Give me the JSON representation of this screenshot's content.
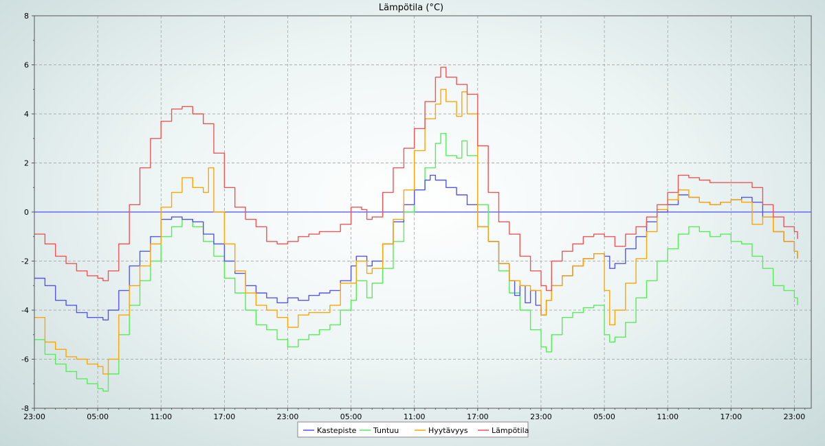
{
  "chart_data": {
    "type": "line",
    "title": "Lämpötila (°C)",
    "xlabel": "",
    "ylabel": "",
    "ylim": [
      -8,
      8
    ],
    "yticks": [
      -8,
      -6,
      -4,
      -2,
      0,
      2,
      4,
      6,
      8
    ],
    "xlim": [
      0,
      72
    ],
    "x_unit": "hours since first tick (23:00)",
    "xtick_labels": [
      "23:00",
      "05:00",
      "11:00",
      "17:00",
      "23:00",
      "05:00",
      "11:00",
      "17:00",
      "23:00",
      "05:00",
      "11:00",
      "17:00",
      "23:00"
    ],
    "xtick_hours": [
      0,
      6,
      12,
      18,
      24,
      30,
      36,
      42,
      48,
      54,
      60,
      66,
      72
    ],
    "grid": true,
    "zero_line_color": "#4c4cff",
    "legend_position": "bottom-center",
    "series": [
      {
        "name": "Kastepiste",
        "color": "#5555ee",
        "points": [
          [
            0,
            -2.7
          ],
          [
            1,
            -3.0
          ],
          [
            2,
            -3.6
          ],
          [
            3,
            -3.8
          ],
          [
            4,
            -4.1
          ],
          [
            5,
            -4.3
          ],
          [
            6,
            -4.3
          ],
          [
            6.5,
            -4.4
          ],
          [
            7,
            -4.0
          ],
          [
            8,
            -3.2
          ],
          [
            9,
            -2.2
          ],
          [
            10,
            -1.6
          ],
          [
            11,
            -1.0
          ],
          [
            12,
            -0.3
          ],
          [
            13,
            -0.2
          ],
          [
            14,
            -0.3
          ],
          [
            15,
            -0.4
          ],
          [
            16,
            -0.9
          ],
          [
            17,
            -1.3
          ],
          [
            18,
            -2.0
          ],
          [
            19,
            -2.5
          ],
          [
            20,
            -3.0
          ],
          [
            21,
            -3.3
          ],
          [
            22,
            -3.5
          ],
          [
            23,
            -3.7
          ],
          [
            24,
            -3.5
          ],
          [
            25,
            -3.6
          ],
          [
            26,
            -3.4
          ],
          [
            27,
            -3.3
          ],
          [
            28,
            -3.2
          ],
          [
            29,
            -2.8
          ],
          [
            30,
            -2.2
          ],
          [
            30.5,
            -1.8
          ],
          [
            31,
            -1.8
          ],
          [
            31.5,
            -2.2
          ],
          [
            32,
            -2.0
          ],
          [
            33,
            -1.3
          ],
          [
            34,
            -0.4
          ],
          [
            35,
            0.3
          ],
          [
            36,
            0.9
          ],
          [
            37,
            1.3
          ],
          [
            37.5,
            1.5
          ],
          [
            38,
            1.3
          ],
          [
            39,
            1.0
          ],
          [
            40,
            0.7
          ],
          [
            41,
            0.3
          ],
          [
            42,
            -0.6
          ],
          [
            43,
            -1.2
          ],
          [
            44,
            -2.1
          ],
          [
            45,
            -2.8
          ],
          [
            45.5,
            -3.4
          ],
          [
            46,
            -3.0
          ],
          [
            46.5,
            -3.7
          ],
          [
            47,
            -3.2
          ],
          [
            47.5,
            -3.8
          ],
          [
            48,
            -4.2
          ],
          [
            48.5,
            -3.6
          ],
          [
            49,
            -3.0
          ],
          [
            50,
            -2.6
          ],
          [
            51,
            -2.2
          ],
          [
            52,
            -1.9
          ],
          [
            53,
            -1.7
          ],
          [
            54,
            -1.8
          ],
          [
            54.5,
            -2.3
          ],
          [
            55,
            -2.1
          ],
          [
            56,
            -1.5
          ],
          [
            57,
            -1.0
          ],
          [
            58,
            -0.4
          ],
          [
            59,
            0.0
          ],
          [
            60,
            0.3
          ],
          [
            61,
            0.7
          ],
          [
            62,
            0.6
          ],
          [
            63,
            0.4
          ],
          [
            64,
            0.3
          ],
          [
            65,
            0.4
          ],
          [
            66,
            0.5
          ],
          [
            67,
            0.6
          ],
          [
            68,
            0.4
          ],
          [
            69,
            -0.2
          ],
          [
            70,
            -0.8
          ],
          [
            71,
            -1.2
          ],
          [
            72,
            -1.6
          ],
          [
            72.3,
            -1.9
          ]
        ]
      },
      {
        "name": "Tuntuu",
        "color": "#55ee55",
        "points": [
          [
            0,
            -5.2
          ],
          [
            1,
            -5.8
          ],
          [
            2,
            -6.2
          ],
          [
            3,
            -6.5
          ],
          [
            4,
            -6.8
          ],
          [
            5,
            -7.0
          ],
          [
            6,
            -7.2
          ],
          [
            6.5,
            -7.3
          ],
          [
            7,
            -6.6
          ],
          [
            8,
            -5.0
          ],
          [
            9,
            -3.8
          ],
          [
            10,
            -2.8
          ],
          [
            11,
            -2.0
          ],
          [
            12,
            -1.0
          ],
          [
            13,
            -0.6
          ],
          [
            14,
            -0.3
          ],
          [
            15,
            -0.6
          ],
          [
            16,
            -1.2
          ],
          [
            17,
            -1.8
          ],
          [
            18,
            -2.7
          ],
          [
            19,
            -3.3
          ],
          [
            20,
            -4.0
          ],
          [
            21,
            -4.6
          ],
          [
            22,
            -4.8
          ],
          [
            23,
            -5.2
          ],
          [
            24,
            -5.5
          ],
          [
            25,
            -5.2
          ],
          [
            26,
            -5.0
          ],
          [
            27,
            -4.8
          ],
          [
            28,
            -4.6
          ],
          [
            29,
            -4.0
          ],
          [
            30,
            -3.6
          ],
          [
            30.5,
            -2.8
          ],
          [
            31,
            -2.8
          ],
          [
            31.5,
            -3.5
          ],
          [
            32,
            -2.9
          ],
          [
            33,
            -2.3
          ],
          [
            34,
            -1.2
          ],
          [
            35,
            0.0
          ],
          [
            36,
            0.9
          ],
          [
            37,
            1.8
          ],
          [
            38,
            2.8
          ],
          [
            38.5,
            3.2
          ],
          [
            39,
            2.3
          ],
          [
            40,
            2.2
          ],
          [
            40.5,
            2.9
          ],
          [
            41,
            2.3
          ],
          [
            42,
            0.3
          ],
          [
            43,
            -1.2
          ],
          [
            44,
            -2.4
          ],
          [
            45,
            -3.3
          ],
          [
            46,
            -4.0
          ],
          [
            47,
            -4.8
          ],
          [
            48,
            -5.5
          ],
          [
            48.5,
            -5.7
          ],
          [
            49,
            -5.0
          ],
          [
            50,
            -4.3
          ],
          [
            51,
            -4.1
          ],
          [
            52,
            -3.9
          ],
          [
            53,
            -3.8
          ],
          [
            54,
            -5.0
          ],
          [
            54.5,
            -5.3
          ],
          [
            55,
            -5.1
          ],
          [
            56,
            -4.5
          ],
          [
            57,
            -3.5
          ],
          [
            58,
            -2.8
          ],
          [
            59,
            -2.0
          ],
          [
            60,
            -1.5
          ],
          [
            61,
            -0.9
          ],
          [
            62,
            -0.6
          ],
          [
            63,
            -0.8
          ],
          [
            64,
            -1.0
          ],
          [
            65,
            -0.9
          ],
          [
            66,
            -1.2
          ],
          [
            67,
            -1.3
          ],
          [
            68,
            -1.8
          ],
          [
            69,
            -2.3
          ],
          [
            70,
            -3.0
          ],
          [
            71,
            -3.2
          ],
          [
            72,
            -3.5
          ],
          [
            72.3,
            -3.8
          ]
        ]
      },
      {
        "name": "Hyytävyys",
        "color": "#ffa500",
        "points": [
          [
            0,
            -4.3
          ],
          [
            1,
            -5.3
          ],
          [
            2,
            -5.6
          ],
          [
            3,
            -5.9
          ],
          [
            4,
            -6.0
          ],
          [
            5,
            -6.2
          ],
          [
            6,
            -6.3
          ],
          [
            6.5,
            -6.6
          ],
          [
            7,
            -6.0
          ],
          [
            8,
            -4.2
          ],
          [
            9,
            -3.0
          ],
          [
            10,
            -2.2
          ],
          [
            11,
            -1.3
          ],
          [
            12,
            0.2
          ],
          [
            13,
            0.8
          ],
          [
            14,
            1.4
          ],
          [
            15,
            1.0
          ],
          [
            16,
            0.8
          ],
          [
            16.5,
            1.8
          ],
          [
            17,
            0.0
          ],
          [
            18,
            -1.3
          ],
          [
            19,
            -2.4
          ],
          [
            20,
            -3.3
          ],
          [
            21,
            -3.8
          ],
          [
            22,
            -4.0
          ],
          [
            23,
            -4.3
          ],
          [
            24,
            -4.7
          ],
          [
            25,
            -4.2
          ],
          [
            26,
            -4.1
          ],
          [
            27,
            -4.1
          ],
          [
            28,
            -3.8
          ],
          [
            29,
            -2.9
          ],
          [
            30,
            -2.9
          ],
          [
            30.5,
            -2.0
          ],
          [
            31,
            -2.0
          ],
          [
            31.5,
            -2.5
          ],
          [
            32,
            -2.3
          ],
          [
            33,
            -1.3
          ],
          [
            34,
            -0.3
          ],
          [
            35,
            0.9
          ],
          [
            36,
            2.5
          ],
          [
            37,
            3.8
          ],
          [
            38,
            4.4
          ],
          [
            38.5,
            5.0
          ],
          [
            39,
            4.5
          ],
          [
            40,
            3.9
          ],
          [
            40.5,
            4.9
          ],
          [
            41,
            4.0
          ],
          [
            42,
            -0.6
          ],
          [
            43,
            -1.2
          ],
          [
            44,
            -2.1
          ],
          [
            45,
            -2.8
          ],
          [
            46,
            -3.0
          ],
          [
            47,
            -3.2
          ],
          [
            48,
            -4.2
          ],
          [
            48.5,
            -3.6
          ],
          [
            49,
            -3.0
          ],
          [
            50,
            -2.6
          ],
          [
            51,
            -2.2
          ],
          [
            52,
            -1.9
          ],
          [
            53,
            -1.7
          ],
          [
            54,
            -3.2
          ],
          [
            54.5,
            -4.6
          ],
          [
            55,
            -4.0
          ],
          [
            56,
            -2.9
          ],
          [
            57,
            -1.9
          ],
          [
            58,
            -0.8
          ],
          [
            59,
            0.1
          ],
          [
            60,
            0.5
          ],
          [
            61,
            0.9
          ],
          [
            62,
            0.6
          ],
          [
            63,
            0.4
          ],
          [
            64,
            0.3
          ],
          [
            65,
            0.4
          ],
          [
            66,
            0.5
          ],
          [
            67,
            0.4
          ],
          [
            68,
            -0.5
          ],
          [
            69,
            -0.2
          ],
          [
            70,
            -0.8
          ],
          [
            71,
            -1.2
          ],
          [
            72,
            -1.6
          ],
          [
            72.3,
            -1.9
          ]
        ]
      },
      {
        "name": "Lämpötila",
        "color": "#ee5555",
        "points": [
          [
            0,
            -0.9
          ],
          [
            1,
            -1.3
          ],
          [
            2,
            -1.8
          ],
          [
            3,
            -2.1
          ],
          [
            4,
            -2.4
          ],
          [
            5,
            -2.6
          ],
          [
            6,
            -2.7
          ],
          [
            6.5,
            -2.8
          ],
          [
            7,
            -2.4
          ],
          [
            8,
            -1.3
          ],
          [
            9,
            0.3
          ],
          [
            10,
            1.8
          ],
          [
            11,
            3.0
          ],
          [
            12,
            3.7
          ],
          [
            13,
            4.2
          ],
          [
            14,
            4.3
          ],
          [
            15,
            4.0
          ],
          [
            16,
            3.6
          ],
          [
            17,
            2.4
          ],
          [
            18,
            1.0
          ],
          [
            19,
            0.2
          ],
          [
            20,
            -0.3
          ],
          [
            21,
            -0.6
          ],
          [
            22,
            -1.2
          ],
          [
            23,
            -1.3
          ],
          [
            24,
            -1.2
          ],
          [
            25,
            -1.0
          ],
          [
            26,
            -0.9
          ],
          [
            27,
            -0.8
          ],
          [
            28,
            -0.8
          ],
          [
            29,
            -0.5
          ],
          [
            30,
            0.2
          ],
          [
            31,
            0.1
          ],
          [
            31.5,
            -0.3
          ],
          [
            32,
            -0.2
          ],
          [
            33,
            0.8
          ],
          [
            34,
            1.8
          ],
          [
            35,
            2.6
          ],
          [
            36,
            3.4
          ],
          [
            37,
            4.5
          ],
          [
            38,
            5.5
          ],
          [
            38.5,
            5.9
          ],
          [
            39,
            5.5
          ],
          [
            40,
            5.2
          ],
          [
            41,
            4.8
          ],
          [
            42,
            2.7
          ],
          [
            43,
            0.8
          ],
          [
            44,
            -0.4
          ],
          [
            45,
            -0.9
          ],
          [
            46,
            -1.8
          ],
          [
            47,
            -2.4
          ],
          [
            48,
            -3.0
          ],
          [
            48.5,
            -3.2
          ],
          [
            49,
            -2.0
          ],
          [
            50,
            -1.6
          ],
          [
            51,
            -1.3
          ],
          [
            52,
            -1.0
          ],
          [
            53,
            -0.9
          ],
          [
            54,
            -1.0
          ],
          [
            55,
            -1.4
          ],
          [
            56,
            -0.9
          ],
          [
            57,
            -0.6
          ],
          [
            58,
            -0.2
          ],
          [
            59,
            0.3
          ],
          [
            60,
            0.8
          ],
          [
            61,
            1.5
          ],
          [
            62,
            1.4
          ],
          [
            63,
            1.3
          ],
          [
            64,
            1.2
          ],
          [
            65,
            1.2
          ],
          [
            66,
            1.2
          ],
          [
            67,
            1.2
          ],
          [
            68,
            1.0
          ],
          [
            69,
            0.3
          ],
          [
            70,
            -0.2
          ],
          [
            71,
            -0.6
          ],
          [
            72,
            -0.8
          ],
          [
            72.3,
            -1.1
          ]
        ]
      }
    ]
  }
}
